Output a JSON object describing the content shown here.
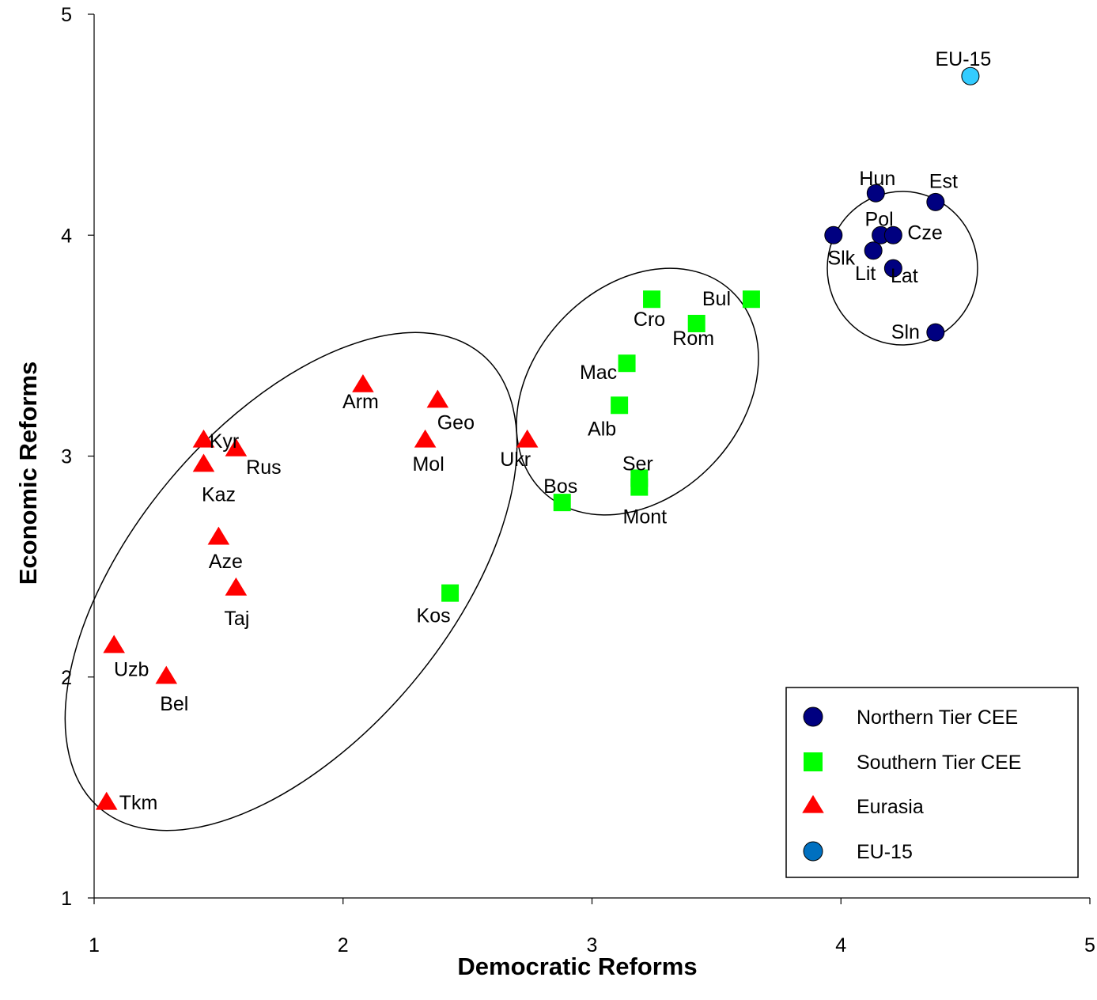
{
  "chart_data": {
    "type": "scatter",
    "title": "",
    "xlabel": "Democratic Reforms",
    "ylabel": "Economic Reforms",
    "xlim": [
      1,
      5
    ],
    "ylim": [
      1,
      5
    ],
    "xticks": [
      "1",
      "2",
      "3",
      "4",
      "5"
    ],
    "yticks": [
      "1",
      "2",
      "3",
      "4",
      "5"
    ],
    "grid": false,
    "legend_position": "bottom-right",
    "series": [
      {
        "name": "Northern Tier CEE",
        "marker": "circle",
        "color": "#000080",
        "points": [
          {
            "label": "Hun",
            "x": 4.14,
            "y": 4.19
          },
          {
            "label": "Est",
            "x": 4.38,
            "y": 4.15
          },
          {
            "label": "Pol",
            "x": 4.16,
            "y": 4.0
          },
          {
            "label": "Cze",
            "x": 4.21,
            "y": 4.0
          },
          {
            "label": "Slk",
            "x": 3.97,
            "y": 4.0
          },
          {
            "label": "Lit",
            "x": 4.13,
            "y": 3.93
          },
          {
            "label": "Lat",
            "x": 4.21,
            "y": 3.85
          },
          {
            "label": "Sln",
            "x": 4.38,
            "y": 3.56
          }
        ]
      },
      {
        "name": "Southern Tier CEE",
        "marker": "square",
        "color": "#00FF00",
        "points": [
          {
            "label": "Cro",
            "x": 3.24,
            "y": 3.71
          },
          {
            "label": "Bul",
            "x": 3.64,
            "y": 3.71
          },
          {
            "label": "Rom",
            "x": 3.42,
            "y": 3.6
          },
          {
            "label": "Mac",
            "x": 3.14,
            "y": 3.42
          },
          {
            "label": "Alb",
            "x": 3.11,
            "y": 3.23
          },
          {
            "label": "Ser",
            "x": 3.19,
            "y": 2.9
          },
          {
            "label": "Mont",
            "x": 3.19,
            "y": 2.86
          },
          {
            "label": "Bos",
            "x": 2.88,
            "y": 2.79
          },
          {
            "label": "Kos",
            "x": 2.43,
            "y": 2.38
          }
        ]
      },
      {
        "name": "Eurasia",
        "marker": "triangle",
        "color": "#FF0000",
        "points": [
          {
            "label": "Arm",
            "x": 2.08,
            "y": 3.32
          },
          {
            "label": "Geo",
            "x": 2.38,
            "y": 3.25
          },
          {
            "label": "Mol",
            "x": 2.33,
            "y": 3.07
          },
          {
            "label": "Ukr",
            "x": 2.74,
            "y": 3.07
          },
          {
            "label": "Kyr",
            "x": 1.44,
            "y": 3.07
          },
          {
            "label": "Rus",
            "x": 1.57,
            "y": 3.03
          },
          {
            "label": "Kaz",
            "x": 1.44,
            "y": 2.96
          },
          {
            "label": "Aze",
            "x": 1.5,
            "y": 2.63
          },
          {
            "label": "Taj",
            "x": 1.57,
            "y": 2.4
          },
          {
            "label": "Uzb",
            "x": 1.08,
            "y": 2.14
          },
          {
            "label": "Bel",
            "x": 1.29,
            "y": 2.0
          },
          {
            "label": "Tkm",
            "x": 1.05,
            "y": 1.43
          }
        ]
      },
      {
        "name": "EU-15",
        "marker": "circle",
        "color": "#33CCFF",
        "points": [
          {
            "label": "EU-15",
            "x": 4.52,
            "y": 4.72
          }
        ]
      }
    ],
    "legend": [
      {
        "label": "Northern Tier CEE",
        "marker": "circle",
        "color": "#000080"
      },
      {
        "label": "Southern Tier CEE",
        "marker": "square",
        "color": "#00FF00"
      },
      {
        "label": "Eurasia",
        "marker": "triangle",
        "color": "#FF0000"
      },
      {
        "label": "EU-15",
        "marker": "circle",
        "color": "#0070C0"
      }
    ]
  }
}
